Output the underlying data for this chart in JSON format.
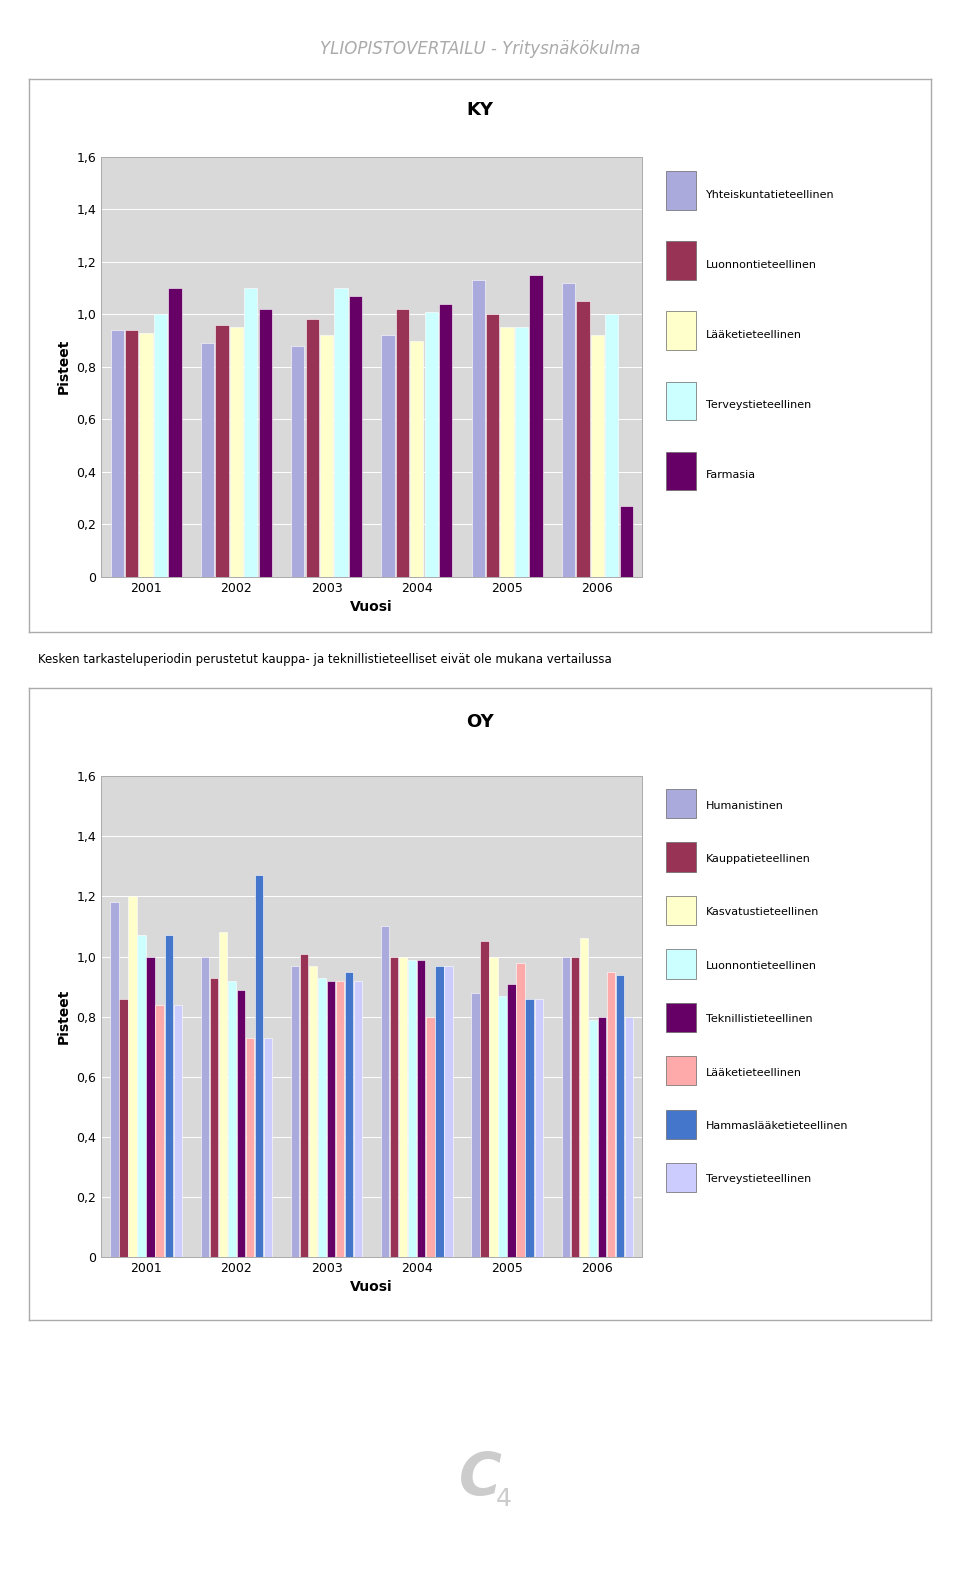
{
  "title_main": "YLIOPISTOVERTAILU - Yritysnäkökulma",
  "note_text": "Kesken tarkasteluperiodin perustetut kauppa- ja teknillistieteelliset eivät ole mukana vertailussa",
  "years": [
    2001,
    2002,
    2003,
    2004,
    2005,
    2006
  ],
  "ky_title": "KY",
  "ky_series": {
    "Yhteiskuntatieteellinen": [
      0.94,
      0.89,
      0.88,
      0.92,
      1.13,
      1.12
    ],
    "Luonnontieteellinen": [
      0.94,
      0.96,
      0.98,
      1.02,
      1.0,
      1.05
    ],
    "Lääketieteellinen": [
      0.93,
      0.95,
      0.92,
      0.9,
      0.95,
      0.92
    ],
    "Terveystieteellinen": [
      1.0,
      1.1,
      1.1,
      1.01,
      0.95,
      1.0
    ],
    "Farmasia": [
      1.1,
      1.02,
      1.07,
      1.04,
      1.15,
      0.27
    ]
  },
  "ky_colors": [
    "#aaaadd",
    "#993355",
    "#ffffcc",
    "#ccffff",
    "#660066"
  ],
  "ky_legend": [
    "Yhteiskuntatieteellinen",
    "Luonnontieteellinen",
    "Lääketieteellinen",
    "Terveystieteellinen",
    "Farmasia"
  ],
  "ky_ylim": [
    0,
    1.6
  ],
  "ky_yticks": [
    0,
    0.2,
    0.4,
    0.6,
    0.8,
    1.0,
    1.2,
    1.4,
    1.6
  ],
  "oy_title": "OY",
  "oy_series": {
    "Humanistinen": [
      1.18,
      1.0,
      0.97,
      1.1,
      0.88,
      1.0
    ],
    "Kauppatieteellinen": [
      0.86,
      0.93,
      1.01,
      1.0,
      1.05,
      1.0
    ],
    "Kasvatustieteellinen": [
      1.2,
      1.08,
      0.97,
      1.0,
      1.0,
      1.06
    ],
    "Luonnontieteellinen": [
      1.07,
      0.92,
      0.93,
      0.99,
      0.87,
      0.79
    ],
    "Teknillistieteellinen": [
      1.0,
      0.89,
      0.92,
      0.99,
      0.91,
      0.8
    ],
    "Lääketieteellinen": [
      0.84,
      0.73,
      0.92,
      0.8,
      0.98,
      0.95
    ],
    "Hammaslääketieteellinen": [
      1.07,
      1.27,
      0.95,
      0.97,
      0.86,
      0.94
    ],
    "Terveystieteellinen": [
      0.84,
      0.73,
      0.92,
      0.97,
      0.86,
      0.8
    ]
  },
  "oy_colors": [
    "#aaaadd",
    "#993355",
    "#ffffcc",
    "#ccffff",
    "#660066",
    "#ffaaaa",
    "#4477cc",
    "#ccccff"
  ],
  "oy_legend": [
    "Humanistinen",
    "Kauppatieteellinen",
    "Kasvatustieteellinen",
    "Luonnontieteellinen",
    "Teknillistieteellinen",
    "Lääketieteellinen",
    "Hammaslääketieteellinen",
    "Terveystieteellinen"
  ],
  "oy_ylim": [
    0,
    1.6
  ],
  "oy_yticks": [
    0,
    0.2,
    0.4,
    0.6,
    0.8,
    1.0,
    1.2,
    1.4,
    1.6
  ],
  "xlabel": "Vuosi",
  "ylabel": "Pisteet",
  "plot_bg": "#d9d9d9",
  "fig_bg": "#ffffff",
  "border_color": "#aaaaaa"
}
